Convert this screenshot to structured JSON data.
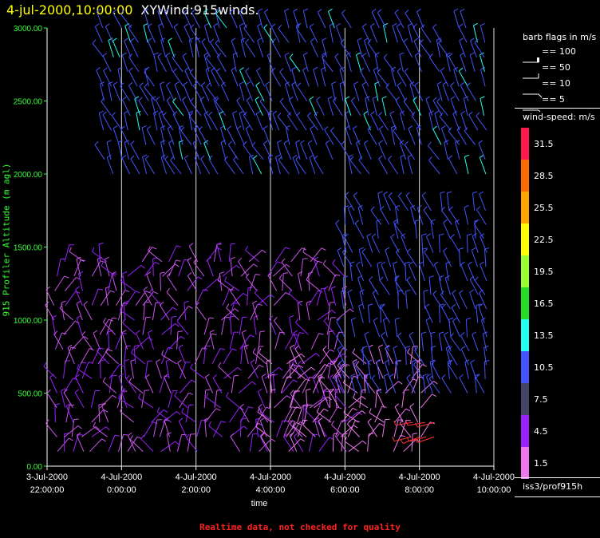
{
  "header": {
    "timestamp": "4-jul-2000,10:00:00",
    "plot_name": "XYWind:915winds."
  },
  "footer": {
    "note": "Realtime data, not checked for quality"
  },
  "legend": {
    "barb_title": "barb flags in m/s",
    "barb_flags": [
      "== 100",
      "== 50",
      "== 10",
      "== 5"
    ],
    "speed_title": "wind-speed: m/s",
    "speed_levels": [
      {
        "label": "31.5",
        "color": "#ff1a4a"
      },
      {
        "label": "28.5",
        "color": "#ff6a00"
      },
      {
        "label": "25.5",
        "color": "#ffa500"
      },
      {
        "label": "22.5",
        "color": "#ffff00"
      },
      {
        "label": "19.5",
        "color": "#99ff33"
      },
      {
        "label": "16.5",
        "color": "#22dd22"
      },
      {
        "label": "13.5",
        "color": "#22ffee"
      },
      {
        "label": "10.5",
        "color": "#4455ff"
      },
      {
        "label": "7.5",
        "color": "#444466"
      },
      {
        "label": "4.5",
        "color": "#9922ff"
      },
      {
        "label": "1.5",
        "color": "#ee77ee"
      }
    ],
    "station": "iss3/prof915h"
  },
  "chart_data": {
    "type": "scatter",
    "subtype": "wind-barb time-height profile",
    "title": "4-jul-2000,10:00:00  XYWind:915winds.",
    "xlabel": "time",
    "ylabel": "915 Profiler Altitude (m agl)",
    "x_ticks": [
      {
        "line1": "3-Jul-2000",
        "line2": "22:00:00",
        "hour": -2
      },
      {
        "line1": "4-Jul-2000",
        "line2": "0:00:00",
        "hour": 0
      },
      {
        "line1": "4-Jul-2000",
        "line2": "2:00:00",
        "hour": 2
      },
      {
        "line1": "4-Jul-2000",
        "line2": "4:00:00",
        "hour": 4
      },
      {
        "line1": "4-Jul-2000",
        "line2": "6:00:00",
        "hour": 6
      },
      {
        "line1": "4-Jul-2000",
        "line2": "8:00:00",
        "hour": 8
      },
      {
        "line1": "4-Jul-2000",
        "line2": "10:00:00",
        "hour": 10
      }
    ],
    "y_ticks": [
      "0.00",
      "500.00",
      "1000.00",
      "1500.00",
      "2000.00",
      "2500.00",
      "3000.00"
    ],
    "ylim": [
      0,
      3000
    ],
    "xlim_hours": [
      -2,
      10
    ],
    "grid_x": true,
    "legend_position": "right",
    "data_summary": [
      {
        "layer_m": [
          100,
          1400
        ],
        "time_h": [
          -2,
          6
        ],
        "speed_ms_range": [
          1.5,
          7.5
        ],
        "typical_color": "#cc55ee"
      },
      {
        "layer_m": [
          100,
          700
        ],
        "time_h": [
          4,
          8
        ],
        "speed_ms_range": [
          1.5,
          4.5
        ],
        "typical_color": "#ee77ee"
      },
      {
        "layer_m": [
          200,
          300
        ],
        "time_h": [
          7.8,
          8.4
        ],
        "speed_ms_range": [
          19.5,
          31.5
        ],
        "typical_color": "#ff3333"
      },
      {
        "layer_m": [
          500,
          1750
        ],
        "time_h": [
          6,
          10
        ],
        "speed_ms_range": [
          4.5,
          10.5
        ],
        "typical_color": "#4455ff"
      },
      {
        "layer_m": [
          2000,
          3000
        ],
        "time_h": [
          -0.5,
          10
        ],
        "speed_ms_range": [
          7.5,
          13.5
        ],
        "typical_color": "#4455ff"
      }
    ]
  }
}
